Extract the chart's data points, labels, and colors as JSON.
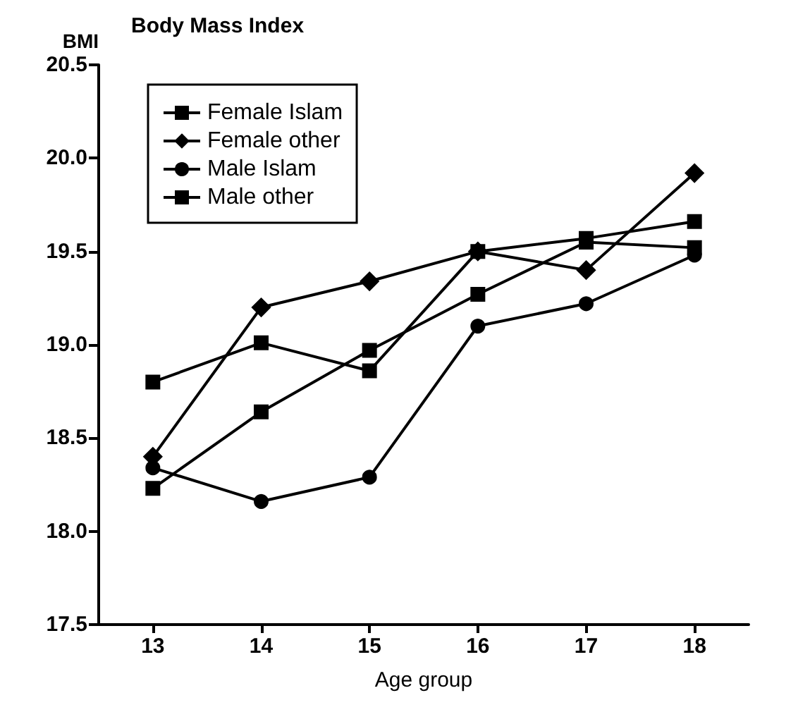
{
  "chart_data": {
    "type": "line",
    "title": "Body Mass Index",
    "xlabel": "Age group",
    "ylabel": "BMI",
    "categories": [
      "13",
      "14",
      "15",
      "16",
      "17",
      "18"
    ],
    "series": [
      {
        "name": "Female Islam",
        "color": "#000000",
        "marker": "square",
        "values": [
          18.23,
          18.64,
          18.97,
          19.27,
          19.55,
          19.52
        ]
      },
      {
        "name": "Female other",
        "color": "#000000",
        "marker": "diamond",
        "values": [
          18.4,
          19.2,
          19.34,
          19.5,
          19.4,
          19.92
        ]
      },
      {
        "name": "Male Islam",
        "color": "#000000",
        "marker": "circle",
        "values": [
          18.34,
          18.16,
          18.29,
          19.1,
          19.22,
          19.48
        ]
      },
      {
        "name": "Male other",
        "color": "#000000",
        "marker": "square",
        "values": [
          18.8,
          19.01,
          18.86,
          19.5,
          19.57,
          19.66
        ]
      }
    ],
    "ylim": [
      17.5,
      20.5
    ],
    "yticks": [
      {
        "value": 17.5,
        "label": "17.5"
      },
      {
        "value": 18,
        "label": "18.0"
      },
      {
        "value": 18.5,
        "label": "18.5"
      },
      {
        "value": 19,
        "label": "19.0"
      },
      {
        "value": 19.5,
        "label": "19.5"
      },
      {
        "value": 20,
        "label": "20.0"
      },
      {
        "value": 20.5,
        "label": "20.5"
      }
    ],
    "grid": false,
    "legend": "top left",
    "line_style": "solid"
  }
}
